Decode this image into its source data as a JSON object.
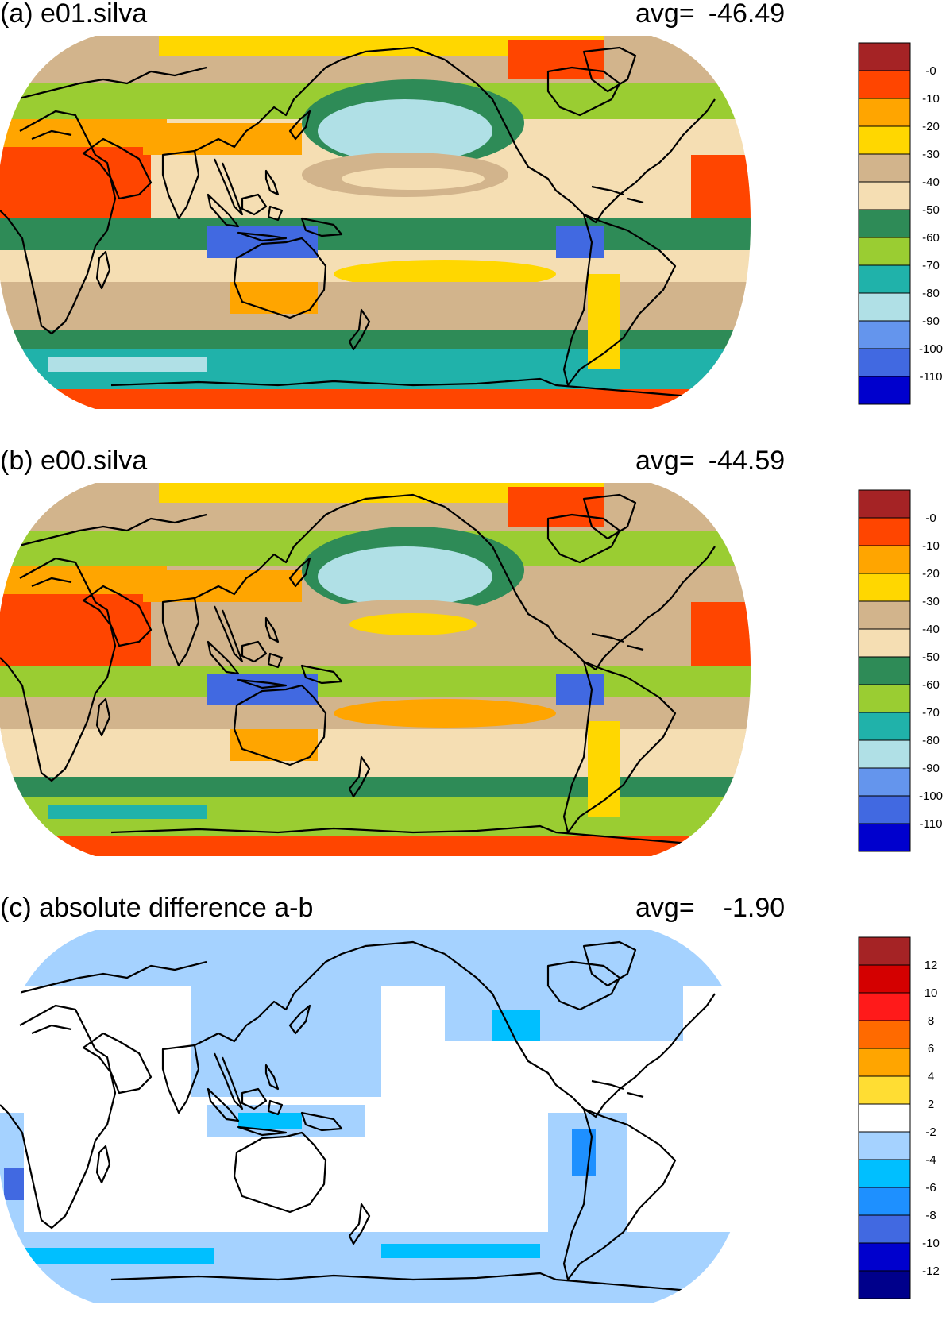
{
  "panels": [
    {
      "id": "a",
      "title": "(a) e01.silva",
      "avg_label": "avg=",
      "avg_value": "-46.49",
      "colorbar": {
        "colors": [
          "#a52325",
          "#ff4500",
          "#ffa500",
          "#ffd700",
          "#d2b48c",
          "#f5deb3",
          "#2e8b57",
          "#9acd32",
          "#20b2aa",
          "#b0e0e6",
          "#6495ed",
          "#4169e1",
          "#0000cd"
        ],
        "labels": [
          "-0",
          "-10",
          "-20",
          "-30",
          "-40",
          "-50",
          "-60",
          "-70",
          "-80",
          "-90",
          "-100",
          "-110"
        ]
      }
    },
    {
      "id": "b",
      "title": "(b) e00.silva",
      "avg_label": "avg=",
      "avg_value": "-44.59",
      "colorbar": {
        "colors": [
          "#a52325",
          "#ff4500",
          "#ffa500",
          "#ffd700",
          "#d2b48c",
          "#f5deb3",
          "#2e8b57",
          "#9acd32",
          "#20b2aa",
          "#b0e0e6",
          "#6495ed",
          "#4169e1",
          "#0000cd"
        ],
        "labels": [
          "-0",
          "-10",
          "-20",
          "-30",
          "-40",
          "-50",
          "-60",
          "-70",
          "-80",
          "-90",
          "-100",
          "-110"
        ]
      }
    },
    {
      "id": "c",
      "title": "(c) absolute difference a-b",
      "avg_label": "avg=",
      "avg_value": "-1.90",
      "colorbar": {
        "colors": [
          "#a52325",
          "#d40000",
          "#ff1a1a",
          "#ff6a00",
          "#ffa500",
          "#ffdd33",
          "#ffffff",
          "#a5d2ff",
          "#00bfff",
          "#1e90ff",
          "#4169e1",
          "#0000cd",
          "#00008b"
        ],
        "labels": [
          "12",
          "10",
          "8",
          "6",
          "4",
          "2",
          "-2",
          "-4",
          "-6",
          "-8",
          "-10",
          "-12"
        ]
      }
    }
  ]
}
